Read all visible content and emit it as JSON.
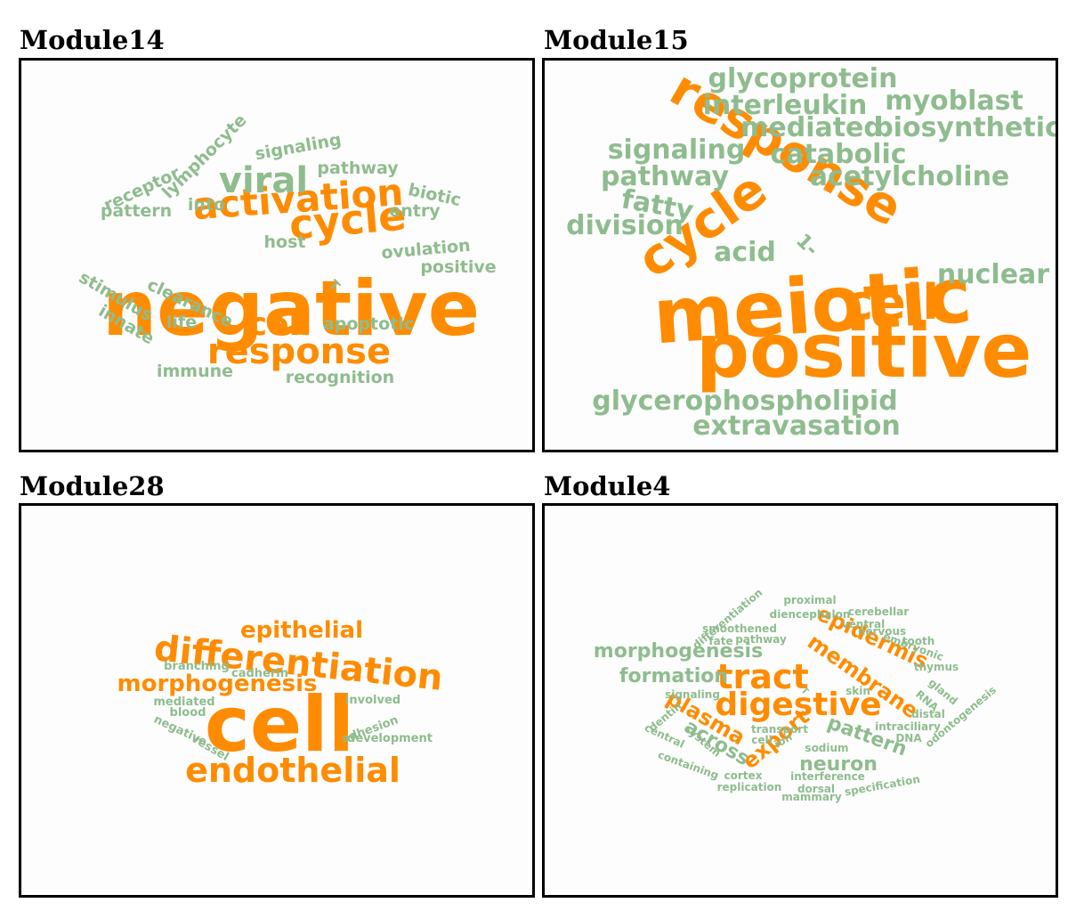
{
  "colors": {
    "major": "#ff8c00",
    "minor": "#8fbc8f",
    "border": "#000000"
  },
  "chart_data": [
    {
      "type": "wordcloud",
      "title": "Module14",
      "words": [
        {
          "text": "negative",
          "weight": 10,
          "major": true
        },
        {
          "text": "activation",
          "weight": 4.5,
          "major": true
        },
        {
          "text": "cycle",
          "weight": 4.5,
          "major": true
        },
        {
          "text": "response",
          "weight": 3.8,
          "major": true
        },
        {
          "text": "cell",
          "weight": 3.6,
          "major": true
        },
        {
          "text": "viral",
          "weight": 3.6,
          "major": false
        },
        {
          "text": "receptor",
          "weight": 2,
          "major": false
        },
        {
          "text": "lymphocyte",
          "weight": 2,
          "major": false
        },
        {
          "text": "signaling",
          "weight": 2,
          "major": false
        },
        {
          "text": "pathway",
          "weight": 2,
          "major": false
        },
        {
          "text": "biotic",
          "weight": 2,
          "major": false
        },
        {
          "text": "pattern",
          "weight": 2,
          "major": false
        },
        {
          "text": "into",
          "weight": 2,
          "major": false
        },
        {
          "text": "entry",
          "weight": 2,
          "major": false
        },
        {
          "text": "host",
          "weight": 2,
          "major": false
        },
        {
          "text": "ovulation",
          "weight": 2,
          "major": false
        },
        {
          "text": "positive",
          "weight": 2,
          "major": false
        },
        {
          "text": "stimulus",
          "weight": 2,
          "major": false
        },
        {
          "text": "clearance",
          "weight": 2,
          "major": false
        },
        {
          "text": "T",
          "weight": 1.6,
          "major": false
        },
        {
          "text": "innate",
          "weight": 2,
          "major": false
        },
        {
          "text": "life",
          "weight": 2,
          "major": false
        },
        {
          "text": "apoptotic",
          "weight": 2,
          "major": false
        },
        {
          "text": "immune",
          "weight": 2,
          "major": false
        },
        {
          "text": "recognition",
          "weight": 2,
          "major": false
        }
      ]
    },
    {
      "type": "wordcloud",
      "title": "Module15",
      "words": [
        {
          "text": "positive",
          "weight": 10,
          "major": true
        },
        {
          "text": "meiotic",
          "weight": 9,
          "major": true
        },
        {
          "text": "response",
          "weight": 6,
          "major": true
        },
        {
          "text": "cycle",
          "weight": 6,
          "major": true
        },
        {
          "text": "cell",
          "weight": 6,
          "major": true
        },
        {
          "text": "glycoprotein",
          "weight": 3,
          "major": false
        },
        {
          "text": "interleukin",
          "weight": 3,
          "major": false
        },
        {
          "text": "myoblast",
          "weight": 3,
          "major": false
        },
        {
          "text": "mediated",
          "weight": 3,
          "major": false
        },
        {
          "text": "biosynthetic",
          "weight": 3,
          "major": false
        },
        {
          "text": "signaling",
          "weight": 3,
          "major": false
        },
        {
          "text": "catabolic",
          "weight": 3,
          "major": false
        },
        {
          "text": "pathway",
          "weight": 3,
          "major": false
        },
        {
          "text": "acetylcholine",
          "weight": 3,
          "major": false
        },
        {
          "text": "fatty",
          "weight": 3,
          "major": false
        },
        {
          "text": "division",
          "weight": 3,
          "major": false
        },
        {
          "text": "1-",
          "weight": 2.4,
          "major": false
        },
        {
          "text": "acid",
          "weight": 3,
          "major": false
        },
        {
          "text": "nuclear",
          "weight": 3,
          "major": false
        },
        {
          "text": "glycerophospholipid",
          "weight": 3,
          "major": false
        },
        {
          "text": "extravasation",
          "weight": 3,
          "major": false
        }
      ]
    },
    {
      "type": "wordcloud",
      "title": "Module28",
      "words": [
        {
          "text": "cell",
          "weight": 10,
          "major": true
        },
        {
          "text": "differentiation",
          "weight": 4.5,
          "major": true
        },
        {
          "text": "endothelial",
          "weight": 4.5,
          "major": true
        },
        {
          "text": "epithelial",
          "weight": 3,
          "major": true
        },
        {
          "text": "morphogenesis",
          "weight": 3,
          "major": true
        },
        {
          "text": "branching",
          "weight": 1.2,
          "major": false
        },
        {
          "text": "cadherin",
          "weight": 1.2,
          "major": false
        },
        {
          "text": "mediated",
          "weight": 1.2,
          "major": false
        },
        {
          "text": "blood",
          "weight": 1.2,
          "major": false
        },
        {
          "text": "negative",
          "weight": 1.2,
          "major": false
        },
        {
          "text": "vessel",
          "weight": 1.2,
          "major": false
        },
        {
          "text": "involved",
          "weight": 1.2,
          "major": false
        },
        {
          "text": "adhesion",
          "weight": 1.2,
          "major": false
        },
        {
          "text": "development",
          "weight": 1.2,
          "major": false
        }
      ]
    },
    {
      "type": "wordcloud",
      "title": "Module4",
      "words": [
        {
          "text": "digestive",
          "weight": 10,
          "major": true
        },
        {
          "text": "tract",
          "weight": 9,
          "major": true
        },
        {
          "text": "membrane",
          "weight": 5,
          "major": true
        },
        {
          "text": "epidermis",
          "weight": 5,
          "major": true
        },
        {
          "text": "plasma",
          "weight": 5,
          "major": true
        },
        {
          "text": "export",
          "weight": 5,
          "major": true
        },
        {
          "text": "morphogenesis",
          "weight": 4,
          "major": false
        },
        {
          "text": "formation",
          "weight": 4,
          "major": false
        },
        {
          "text": "across",
          "weight": 4,
          "major": false
        },
        {
          "text": "pattern",
          "weight": 4,
          "major": false
        },
        {
          "text": "neuron",
          "weight": 4,
          "major": false
        },
        {
          "text": "differentiation",
          "weight": 2,
          "major": false
        },
        {
          "text": "proximal",
          "weight": 2,
          "major": false
        },
        {
          "text": "diencephalon",
          "weight": 2,
          "major": false
        },
        {
          "text": "cerebellar",
          "weight": 2,
          "major": false
        },
        {
          "text": "ventral",
          "weight": 2,
          "major": false
        },
        {
          "text": "smoothened",
          "weight": 2,
          "major": false
        },
        {
          "text": "nervous",
          "weight": 2,
          "major": false
        },
        {
          "text": "fate",
          "weight": 2,
          "major": false
        },
        {
          "text": "pathway",
          "weight": 2,
          "major": false
        },
        {
          "text": "embryonic",
          "weight": 2,
          "major": false
        },
        {
          "text": "tooth",
          "weight": 2,
          "major": false
        },
        {
          "text": "thymus",
          "weight": 2,
          "major": false
        },
        {
          "text": "gland",
          "weight": 2,
          "major": false
        },
        {
          "text": "signaling",
          "weight": 2,
          "major": false
        },
        {
          "text": "T",
          "weight": 2,
          "major": false
        },
        {
          "text": "skin",
          "weight": 2,
          "major": false
        },
        {
          "text": "RNA",
          "weight": 2,
          "major": false
        },
        {
          "text": "distal",
          "weight": 2,
          "major": false
        },
        {
          "text": "dentin",
          "weight": 2,
          "major": false
        },
        {
          "text": "intraciliary",
          "weight": 2,
          "major": false
        },
        {
          "text": "odontogenesis",
          "weight": 2,
          "major": false
        },
        {
          "text": "central",
          "weight": 2,
          "major": false
        },
        {
          "text": "transport",
          "weight": 2,
          "major": false
        },
        {
          "text": "DNA",
          "weight": 2,
          "major": false
        },
        {
          "text": "system",
          "weight": 2,
          "major": false
        },
        {
          "text": "cell",
          "weight": 2,
          "major": false
        },
        {
          "text": "ion",
          "weight": 2,
          "major": false
        },
        {
          "text": "sodium",
          "weight": 2,
          "major": false
        },
        {
          "text": "containing",
          "weight": 2,
          "major": false
        },
        {
          "text": "cortex",
          "weight": 2,
          "major": false
        },
        {
          "text": "interference",
          "weight": 2,
          "major": false
        },
        {
          "text": "replication",
          "weight": 2,
          "major": false
        },
        {
          "text": "dorsal",
          "weight": 2,
          "major": false
        },
        {
          "text": "specification",
          "weight": 2,
          "major": false
        },
        {
          "text": "mammary",
          "weight": 2,
          "major": false
        }
      ]
    }
  ]
}
